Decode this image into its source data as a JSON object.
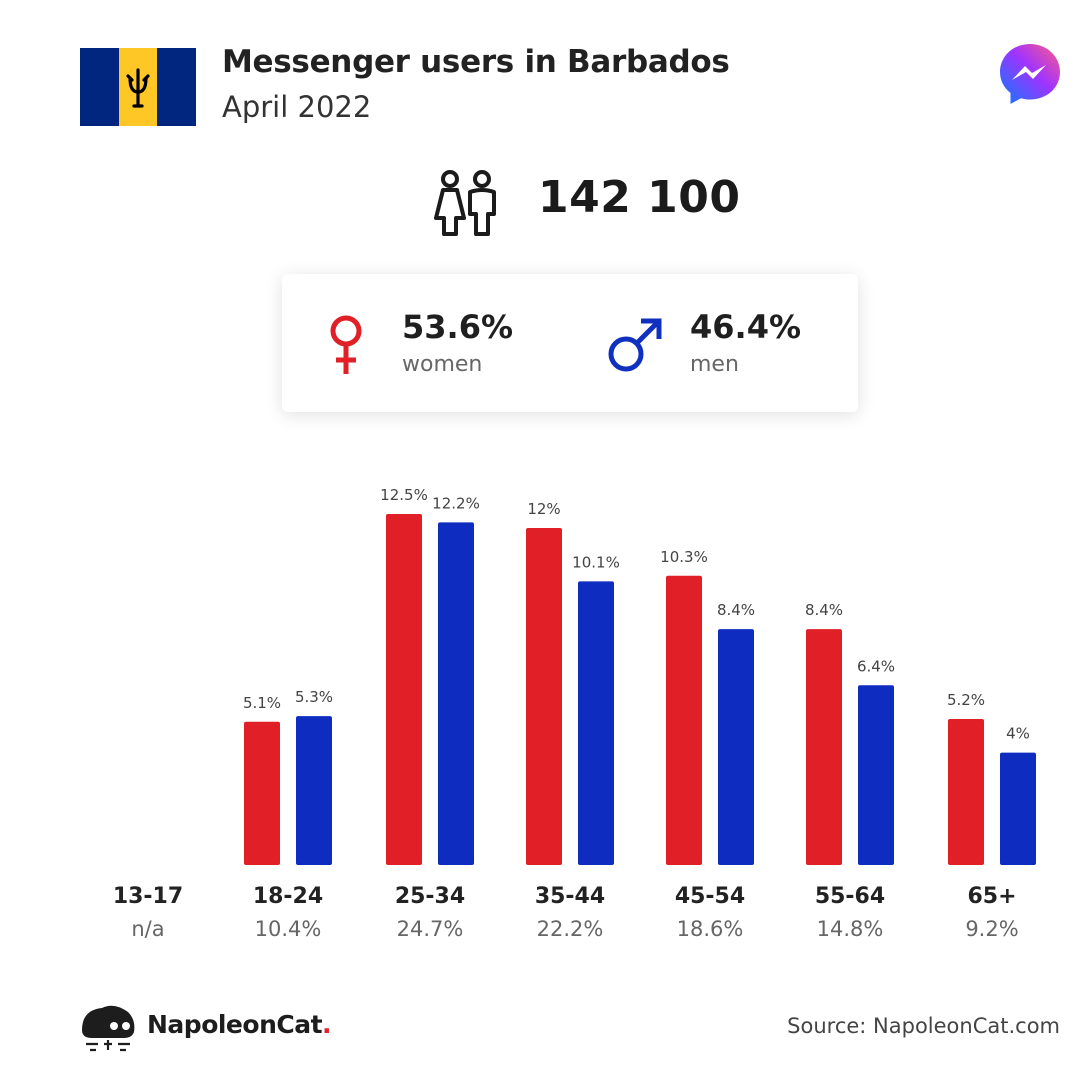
{
  "header": {
    "title": "Messenger users in Barbados",
    "subtitle": "April 2022",
    "flag_icon": "barbados-flag-icon",
    "brand_icon": "messenger-icon"
  },
  "total": {
    "value": "142 100",
    "icon": "people-icon"
  },
  "gender": {
    "women": {
      "pct": "53.6%",
      "label": "women",
      "icon": "female-icon",
      "color": "#e01f27"
    },
    "men": {
      "pct": "46.4%",
      "label": "men",
      "icon": "male-icon",
      "color": "#1030c0"
    }
  },
  "chart_data": {
    "type": "bar",
    "categories": [
      "13-17",
      "18-24",
      "25-34",
      "35-44",
      "45-54",
      "55-64",
      "65+"
    ],
    "category_totals": [
      "n/a",
      "10.4%",
      "24.7%",
      "22.2%",
      "18.6%",
      "14.8%",
      "9.2%"
    ],
    "series": [
      {
        "color": "#e01f27",
        "values": [
          null,
          5.1,
          12.5,
          12,
          10.3,
          8.4,
          5.2
        ],
        "labels": [
          "",
          "5.1%",
          "12.5%",
          "12%",
          "10.3%",
          "8.4%",
          "5.2%"
        ]
      },
      {
        "color": "#0f2cc0",
        "values": [
          null,
          5.3,
          12.2,
          10.1,
          8.4,
          6.4,
          4
        ],
        "labels": [
          "",
          "5.3%",
          "12.2%",
          "10.1%",
          "8.4%",
          "6.4%",
          "4%"
        ]
      }
    ],
    "ylim": [
      0,
      12.5
    ],
    "grid": false
  },
  "footer": {
    "brand_name": "NapoleonCat",
    "brand_dot": ".",
    "source": "Source: NapoleonCat.com"
  }
}
